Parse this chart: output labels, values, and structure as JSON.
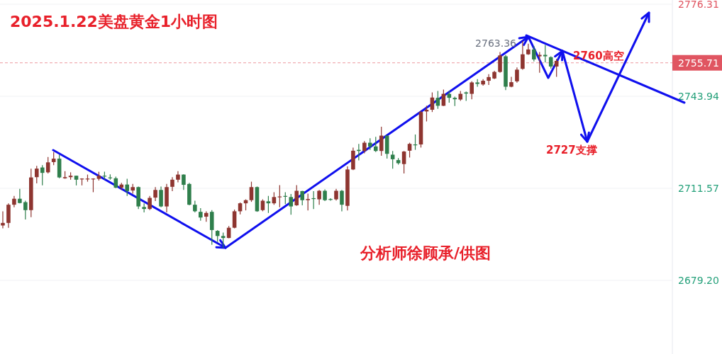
{
  "chart_data": {
    "type": "candlestick",
    "title": "2025.1.22美盘黄金1小时图",
    "annotations": [
      "2763.36",
      "2760高空",
      "2727支撑",
      "分析师徐顾承/供图"
    ],
    "ylim": [
      2653.3,
      2777.8
    ],
    "yticks": [
      2776.31,
      2743.94,
      2711.57,
      {
        "value": 2679.2,
        "label": "2679.20"
      }
    ],
    "grid": "y",
    "colors": [
      "#8e3530",
      "#8e3530",
      "#8e3530",
      "#2f7f4c",
      "#2f7f4c",
      "#8e3530",
      "#8e3530",
      "#2f7f4c",
      "#8e3530",
      "#8e3530",
      "#2f7f4c",
      "#8e3530",
      "#8e3530",
      "#2f7f4c",
      "#8e3530",
      "#8e3530",
      "#8e3530",
      "#8e3530",
      "#2f7f4c",
      "#2f7f4c",
      "#2f7f4c",
      "#8e3530",
      "#2f7f4c",
      "#8e3530",
      "#2f7f4c",
      "#2f7f4c",
      "#8e3530",
      "#8e3530",
      "#2f7f4c",
      "#8e3530",
      "#8e3530",
      "#8e3530",
      "#2f7f4c",
      "#2f7f4c",
      "#2f7f4c",
      "#2f7f4c",
      "#8e3530",
      "#2f7f4c",
      "#2f7f4c",
      "#2f7f4c",
      "#8e3530",
      "#8e3530",
      "#8e3530",
      "#8e3530",
      "#8e3530",
      "#2f7f4c",
      "#8e3530",
      "#2f7f4c",
      "#8e3530",
      "#8e3530",
      "#2f7f4c",
      "#2f7f4c",
      "#8e3530",
      "#2f7f4c",
      "#8e3530",
      "#2f7f4c",
      "#8e3530",
      "#2f7f4c",
      "#2f7f4c",
      "#8e3530",
      "#2f7f4c",
      "#8e3530",
      "#8e3530",
      "#2f7f4c",
      "#8e3530",
      "#2f7f4c",
      "#2f7f4c",
      "#8e3530",
      "#2f7f4c",
      "#2f7f4c",
      "#2f7f4c",
      "#8e3530",
      "#8e3530",
      "#2f7f4c",
      "#8e3530",
      "#8e3530",
      "#8e3530",
      "#2f7f4c",
      "#8e3530",
      "#2f7f4c",
      "#2f7f4c",
      "#8e3530",
      "#2f7f4c",
      "#8e3530",
      "#2f7f4c",
      "#8e3530",
      "#8e3530",
      "#8e3530",
      "#8e3530",
      "#2f7f4c",
      "#8e3530",
      "#8e3530",
      "#8e3530",
      "#8e3530",
      "#2f7f4c",
      "#8e3530",
      "#2f7f4c",
      "#2f7f4c",
      "#8e3530",
      null,
      null,
      null,
      null,
      null,
      null,
      null,
      null,
      null,
      null,
      null,
      null,
      null,
      null,
      null,
      null,
      null,
      null,
      null,
      null
    ],
    "ref_lines": [
      {
        "axis": "y",
        "value": 2755.71,
        "label": "2755.71",
        "color": "#e05561",
        "line_style": "dashed"
      }
    ],
    "categories": [
      null,
      null,
      null,
      null,
      null,
      null,
      null,
      null,
      null,
      null,
      null,
      null,
      null,
      null,
      null,
      null,
      null,
      null,
      null,
      null,
      null,
      null,
      null,
      null,
      null,
      null,
      null,
      null,
      null,
      null,
      null,
      null,
      null,
      null,
      null,
      null,
      null,
      null,
      null,
      null,
      null,
      null,
      null,
      null,
      null,
      null,
      null,
      null,
      null,
      null,
      null,
      null,
      null,
      null,
      null,
      null,
      null,
      null,
      null,
      null,
      null,
      null,
      null,
      null,
      null,
      null,
      null,
      null,
      null,
      null,
      null,
      null,
      null,
      null,
      null,
      null,
      null,
      null,
      null,
      null,
      null,
      null,
      null,
      null,
      null,
      null,
      null,
      null,
      null,
      null,
      null,
      null,
      null,
      null,
      null,
      null,
      null,
      null,
      null,
      null,
      null,
      null,
      null,
      null,
      null,
      null,
      null,
      null,
      null,
      null,
      null,
      null,
      null,
      null,
      null,
      null,
      null,
      null,
      null
    ],
    "ohlc": [
      [
        2698.5,
        2703.5,
        2697.5,
        2699.4
      ],
      [
        2699.4,
        2706.3,
        2697.7,
        2705.8
      ],
      [
        2705.8,
        2708.9,
        2704.9,
        2707.9
      ],
      [
        2707.9,
        2711.4,
        2706.3,
        2706.4
      ],
      [
        2706.7,
        2707.2,
        2700.6,
        2703.9
      ],
      [
        2703.9,
        2718.5,
        2701.4,
        2715.4
      ],
      [
        2715.5,
        2719.5,
        2713.3,
        2718.5
      ],
      [
        2718.9,
        2719.7,
        2712.6,
        2717.0
      ],
      [
        2717.2,
        2722.6,
        2716.8,
        2720.7
      ],
      [
        2720.8,
        2724.3,
        2719.7,
        2722.0
      ],
      [
        2722.0,
        2723.4,
        2715.1,
        2715.4
      ],
      [
        2715.1,
        2717.6,
        2714.9,
        2715.5
      ],
      [
        2715.5,
        2717.2,
        2714.6,
        2716.0
      ],
      [
        2716.0,
        2716.0,
        2712.6,
        2714.6
      ],
      [
        2714.7,
        2715.1,
        2712.6,
        2715.0
      ],
      [
        2714.7,
        2716.4,
        2713.9,
        2715.0
      ],
      [
        2714.7,
        2715.1,
        2710.2,
        2715.0
      ],
      [
        2714.9,
        2717.4,
        2714.3,
        2716.0
      ],
      [
        2716.0,
        2717.4,
        2714.7,
        2715.7
      ],
      [
        2715.4,
        2716.5,
        2714.6,
        2715.1
      ],
      [
        2715.1,
        2715.7,
        2711.6,
        2711.8
      ],
      [
        2711.8,
        2713.5,
        2711.0,
        2712.9
      ],
      [
        2712.9,
        2714.9,
        2708.9,
        2710.6
      ],
      [
        2710.8,
        2713.1,
        2709.7,
        2712.0
      ],
      [
        2712.0,
        2712.2,
        2704.3,
        2705.2
      ],
      [
        2705.0,
        2706.3,
        2703.1,
        2704.3
      ],
      [
        2704.3,
        2708.9,
        2703.9,
        2708.2
      ],
      [
        2708.3,
        2712.0,
        2707.1,
        2711.0
      ],
      [
        2711.0,
        2712.2,
        2704.9,
        2705.2
      ],
      [
        2705.2,
        2713.1,
        2703.1,
        2712.0
      ],
      [
        2712.1,
        2715.5,
        2710.6,
        2714.6
      ],
      [
        2714.6,
        2717.6,
        2713.7,
        2716.4
      ],
      [
        2716.4,
        2716.5,
        2711.0,
        2712.8
      ],
      [
        2713.1,
        2713.5,
        2705.6,
        2705.8
      ],
      [
        2705.8,
        2707.2,
        2703.1,
        2703.5
      ],
      [
        2703.3,
        2704.6,
        2700.2,
        2701.3
      ],
      [
        2701.6,
        2703.5,
        2699.8,
        2702.9
      ],
      [
        2703.3,
        2703.9,
        2691.7,
        2696.9
      ],
      [
        2696.6,
        2696.9,
        2692.7,
        2694.8
      ],
      [
        2694.8,
        2696.0,
        2690.6,
        2694.1
      ],
      [
        2694.1,
        2698.3,
        2694.0,
        2697.7
      ],
      [
        2697.7,
        2704.1,
        2697.5,
        2703.5
      ],
      [
        2703.5,
        2706.6,
        2702.4,
        2706.3
      ],
      [
        2706.3,
        2707.7,
        2703.8,
        2707.4
      ],
      [
        2707.4,
        2713.9,
        2706.8,
        2712.0
      ],
      [
        2712.0,
        2712.2,
        2703.3,
        2703.5
      ],
      [
        2703.9,
        2707.7,
        2703.5,
        2707.2
      ],
      [
        2707.0,
        2708.9,
        2702.9,
        2706.3
      ],
      [
        2706.3,
        2710.2,
        2705.8,
        2708.5
      ],
      [
        2708.4,
        2712.7,
        2704.9,
        2708.7
      ],
      [
        2708.9,
        2710.2,
        2706.0,
        2708.6
      ],
      [
        2708.5,
        2709.6,
        2702.3,
        2705.2
      ],
      [
        2705.6,
        2712.7,
        2705.4,
        2710.7
      ],
      [
        2710.6,
        2710.7,
        2705.6,
        2707.4
      ],
      [
        2707.4,
        2709.7,
        2703.8,
        2707.8
      ],
      [
        2708.1,
        2710.6,
        2704.3,
        2707.8
      ],
      [
        2707.7,
        2711.0,
        2705.8,
        2710.7
      ],
      [
        2710.7,
        2711.2,
        2707.1,
        2707.4
      ],
      [
        2707.8,
        2708.1,
        2707.2,
        2707.5
      ],
      [
        2707.7,
        2711.4,
        2707.3,
        2710.7
      ],
      [
        2710.7,
        2711.0,
        2703.5,
        2705.8
      ],
      [
        2705.4,
        2719.3,
        2703.8,
        2718.2
      ],
      [
        2718.2,
        2725.9,
        2718.0,
        2724.8
      ],
      [
        2725.1,
        2727.2,
        2721.4,
        2724.7
      ],
      [
        2724.7,
        2728.2,
        2723.9,
        2727.6
      ],
      [
        2727.6,
        2729.2,
        2725.1,
        2726.3
      ],
      [
        2726.3,
        2729.7,
        2724.3,
        2724.7
      ],
      [
        2724.7,
        2733.2,
        2723.0,
        2730.1
      ],
      [
        2730.1,
        2730.1,
        2722.0,
        2723.7
      ],
      [
        2723.4,
        2724.7,
        2718.5,
        2721.8
      ],
      [
        2721.5,
        2722.2,
        2719.9,
        2720.4
      ],
      [
        2720.1,
        2724.7,
        2716.8,
        2724.5
      ],
      [
        2724.8,
        2727.6,
        2722.4,
        2727.2
      ],
      [
        2727.0,
        2730.5,
        2725.1,
        2726.8
      ],
      [
        2727.0,
        2738.8,
        2725.9,
        2738.4
      ],
      [
        2738.6,
        2740.6,
        2735.1,
        2739.2
      ],
      [
        2739.2,
        2745.3,
        2738.4,
        2743.5
      ],
      [
        2743.4,
        2745.8,
        2739.5,
        2740.6
      ],
      [
        2740.6,
        2746.3,
        2740.5,
        2744.8
      ],
      [
        2744.8,
        2745.8,
        2741.7,
        2743.4
      ],
      [
        2743.4,
        2743.8,
        2740.5,
        2742.9
      ],
      [
        2742.8,
        2745.8,
        2742.3,
        2744.8
      ],
      [
        2745.3,
        2745.6,
        2742.3,
        2744.9
      ],
      [
        2744.8,
        2749.2,
        2742.9,
        2748.8
      ],
      [
        2748.8,
        2750.0,
        2747.3,
        2748.3
      ],
      [
        2748.1,
        2750.0,
        2747.7,
        2749.4
      ],
      [
        2749.4,
        2751.7,
        2747.9,
        2750.7
      ],
      [
        2750.2,
        2752.9,
        2750.0,
        2752.5
      ],
      [
        2752.5,
        2759.5,
        2752.2,
        2758.3
      ],
      [
        2758.0,
        2758.5,
        2746.1,
        2747.3
      ],
      [
        2747.3,
        2750.8,
        2747.1,
        2748.9
      ],
      [
        2749.2,
        2754.1,
        2748.7,
        2753.3
      ],
      [
        2753.6,
        2763.36,
        2753.3,
        2758.7
      ],
      [
        2758.7,
        2762.4,
        2758.5,
        2760.4
      ],
      [
        2760.4,
        2761.6,
        2756.2,
        2756.9
      ],
      [
        2758.0,
        2759.5,
        2752.2,
        2758.5
      ],
      [
        2758.5,
        2762.0,
        2755.8,
        2758.0
      ],
      [
        2757.7,
        2758.0,
        2753.7,
        2754.4
      ],
      [
        2754.4,
        2757.1,
        2750.8,
        2756.4
      ],
      null,
      null,
      null,
      null,
      null,
      null,
      null,
      null,
      null,
      null,
      null,
      null,
      null,
      null,
      null,
      null,
      null,
      null,
      null,
      null
    ]
  }
}
